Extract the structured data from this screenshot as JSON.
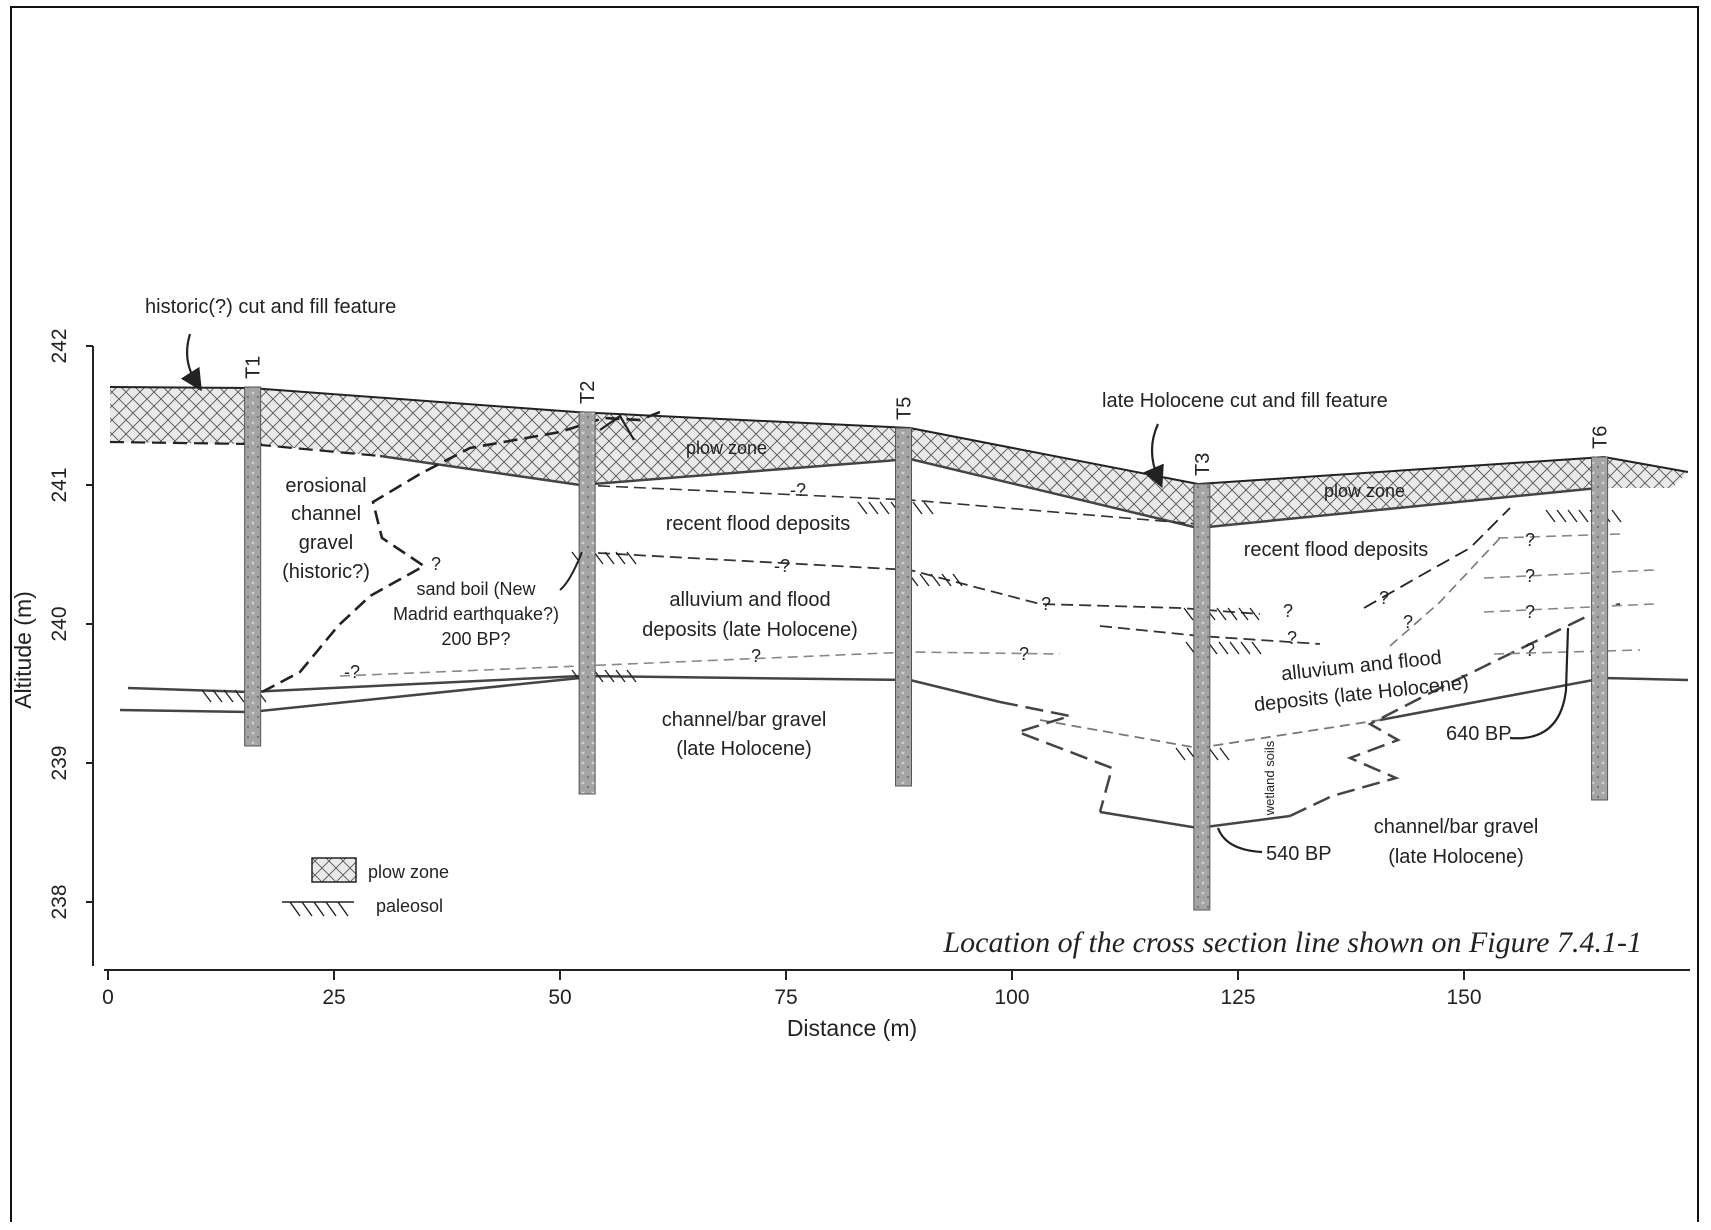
{
  "axes": {
    "x_title": "Distance (m)",
    "y_title": "Altitude (m)",
    "x_ticks": [
      "0",
      "25",
      "50",
      "75",
      "100",
      "125",
      "150"
    ],
    "y_ticks": [
      "242",
      "241",
      "240",
      "239",
      "238"
    ],
    "x_range": [
      0,
      175
    ],
    "y_range": [
      237.5,
      242
    ]
  },
  "trenches": [
    {
      "id": "T1",
      "distance": 16
    },
    {
      "id": "T2",
      "distance": 53
    },
    {
      "id": "T5",
      "distance": 88
    },
    {
      "id": "T3",
      "distance": 121
    },
    {
      "id": "T6",
      "distance": 165
    }
  ],
  "annotations": {
    "historic_feature": "historic(?) cut and fill feature",
    "late_holocene_feature": "late Holocene cut and fill feature",
    "plow_zone_1": "plow zone",
    "plow_zone_2": "plow zone",
    "erosional_1": "erosional",
    "erosional_2": "channel",
    "erosional_3": "gravel",
    "erosional_4": "(historic?)",
    "sandboil_1": "sand boil (New",
    "sandboil_2": "Madrid earthquake?)",
    "sandboil_3": "200 BP?",
    "recent_flood_1": "recent flood deposits",
    "recent_flood_2": "recent flood deposits",
    "alluvium_a1": "alluvium and flood",
    "alluvium_a2": "deposits (late Holocene)",
    "alluvium_b1": "alluvium and flood",
    "alluvium_b2": "deposits (late Holocene)",
    "channel_a1": "channel/bar gravel",
    "channel_a2": "(late Holocene)",
    "channel_b1": "channel/bar gravel",
    "channel_b2": "(late Holocene)",
    "wetland": "wetland soils",
    "date_540": "540 BP",
    "date_640": "640 BP",
    "question_mark": "?",
    "question_dash": "-?"
  },
  "legend": {
    "plow_zone": "plow zone",
    "paleosol": "paleosol"
  },
  "caption": "Location of the cross section line shown on Figure 7.4.1-1",
  "colors": {
    "line": "#222222",
    "grid_fill": "#e6e6e6",
    "trench": "#8a8a8a"
  }
}
